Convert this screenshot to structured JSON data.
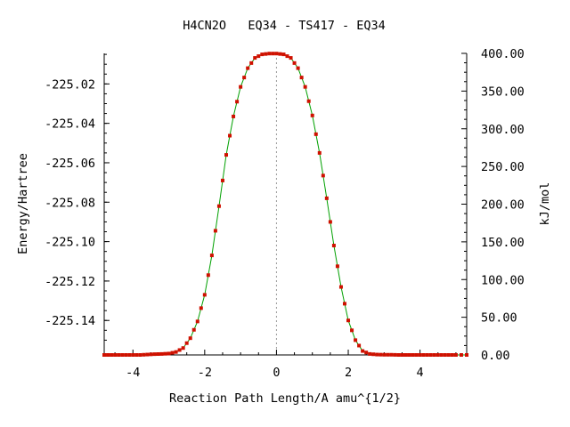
{
  "chart_data": {
    "type": "line",
    "title": "H4CN2O   EQ34 - TS417 - EQ34",
    "xlabel": "Reaction Path Length/A amu^{1/2}",
    "ylabel": "Energy/Hartree",
    "y2label": "kJ/mol",
    "xlim": [
      -4.8,
      5.3
    ],
    "ylim": [
      -225.1575,
      -225.0045
    ],
    "y2lim": [
      0,
      400
    ],
    "x_ticks": [
      -4,
      -2,
      0,
      2,
      4
    ],
    "x_tick_labels": [
      "-4",
      "-2",
      "0",
      "2",
      "4"
    ],
    "y_ticks": [
      -225.02,
      -225.04,
      -225.06,
      -225.08,
      -225.1,
      -225.12,
      -225.14
    ],
    "y_tick_labels": [
      "-225.02",
      "-225.04",
      "-225.06",
      "-225.08",
      "-225.10",
      "-225.12",
      "-225.14"
    ],
    "y2_ticks": [
      0,
      50,
      100,
      150,
      200,
      250,
      300,
      350,
      400
    ],
    "y2_tick_labels": [
      "0.00",
      "50.00",
      "100.00",
      "150.00",
      "200.00",
      "250.00",
      "300.00",
      "350.00",
      "400.00"
    ],
    "ts_line_x": 0,
    "grid": false,
    "series": [
      {
        "line_color": "#00a000",
        "marker_color": "#d01000",
        "x": [
          -4.8,
          -4.6,
          -4.4,
          -4.2,
          -4.0,
          -3.8,
          -3.6,
          -3.4,
          -3.2,
          -3.0,
          -2.8,
          -2.6,
          -2.4,
          -2.2,
          -2.0,
          -1.8,
          -1.6,
          -1.4,
          -1.2,
          -1.0,
          -0.8,
          -0.6,
          -0.4,
          -0.2,
          0.0,
          0.2,
          0.4,
          0.6,
          0.8,
          1.0,
          1.2,
          1.4,
          1.6,
          1.8,
          2.0,
          2.2,
          2.4,
          2.6,
          2.8,
          3.0,
          3.2,
          3.4,
          3.6,
          3.8,
          4.0,
          4.2,
          4.4,
          4.6,
          4.8,
          5.0,
          5.3
        ],
        "y": [
          -225.1575,
          -225.1575,
          -225.1575,
          -225.1575,
          -225.1575,
          -225.1575,
          -225.1573,
          -225.1571,
          -225.157,
          -225.1568,
          -225.156,
          -225.154,
          -225.149,
          -225.1405,
          -225.127,
          -225.107,
          -225.082,
          -225.056,
          -225.0365,
          -225.0215,
          -225.012,
          -225.0068,
          -225.005,
          -225.0046,
          -225.0046,
          -225.005,
          -225.0068,
          -225.012,
          -225.0215,
          -225.036,
          -225.055,
          -225.078,
          -225.102,
          -225.123,
          -225.14,
          -225.15,
          -225.1555,
          -225.157,
          -225.1573,
          -225.1574,
          -225.1574,
          -225.1575,
          -225.1575,
          -225.1575,
          -225.1575,
          -225.1575,
          -225.1575,
          -225.1575,
          -225.1575,
          -225.1575,
          -225.1575
        ]
      }
    ]
  }
}
